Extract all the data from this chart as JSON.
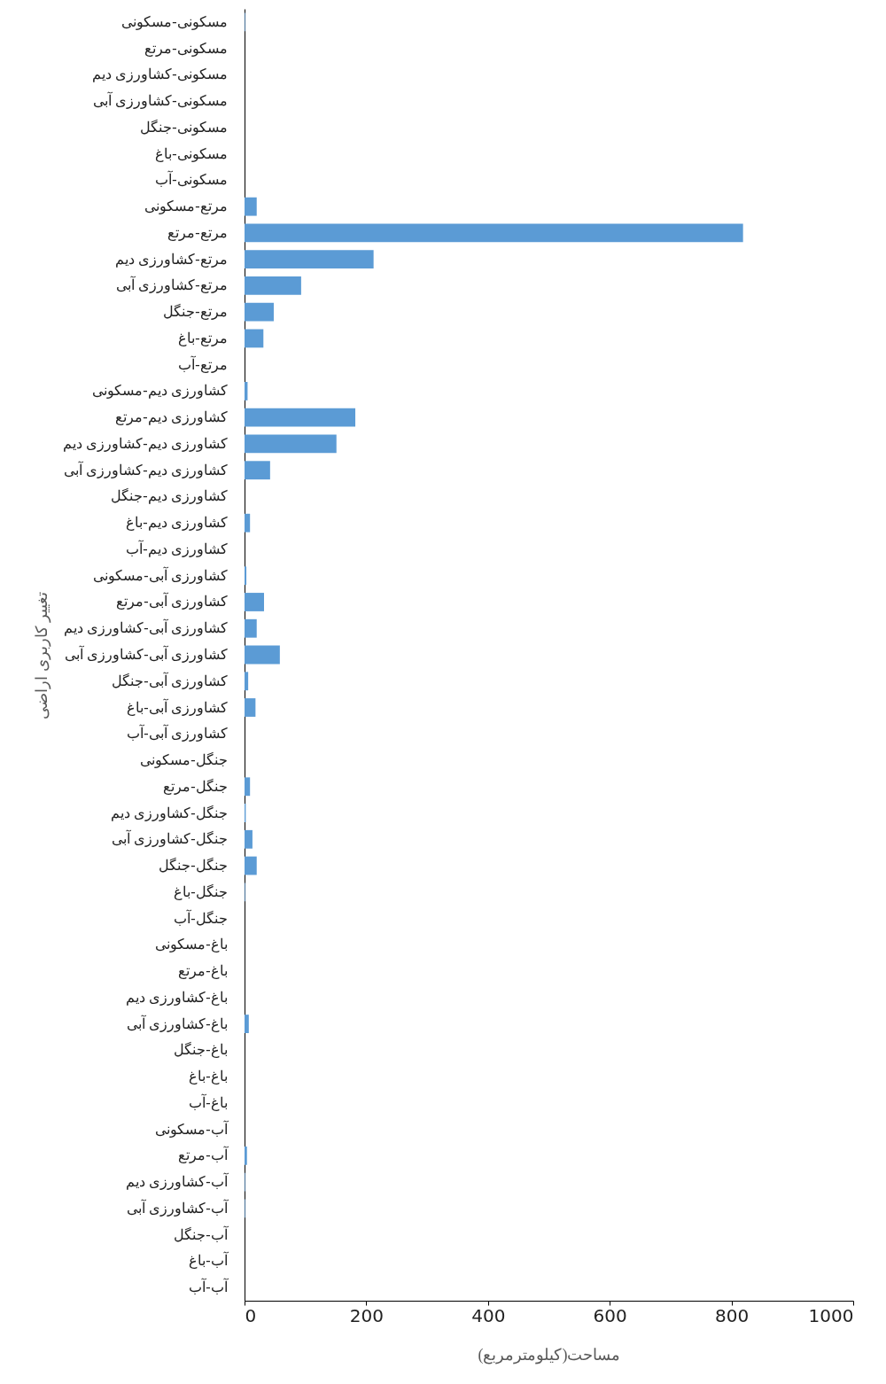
{
  "chart_data": {
    "type": "bar",
    "orientation": "horizontal",
    "xlabel": "مساحت(کیلومترمربع)",
    "ylabel": "تغییر کاربری اراضی",
    "categories": [
      "مسکونی-مسکونی",
      "مسکونی-مرتع",
      "مسکونی-کشاورزی دیم",
      "مسکونی-کشاورزی آبی",
      "مسکونی-جنگل",
      "مسکونی-باغ",
      "مسکونی-آب",
      "مرتع-مسکونی",
      "مرتع-مرتع",
      "مرتع-کشاورزی دیم",
      "مرتع-کشاورزی آبی",
      "مرتع-جنگل",
      "مرتع-باغ",
      "مرتع-آب",
      "کشاورزی دیم-مسکونی",
      "کشاورزی دیم-مرتع",
      "کشاورزی دیم-کشاورزی دیم",
      "کشاورزی دیم-کشاورزی آبی",
      "کشاورزی دیم-جنگل",
      "کشاورزی دیم-باغ",
      "کشاورزی دیم-آب",
      "کشاورزی آبی-مسکونی",
      "کشاورزی آبی-مرتع",
      "کشاورزی آبی-کشاورزی دیم",
      "کشاورزی آبی-کشاورزی آبی",
      "کشاورزی آبی-جنگل",
      "کشاورزی آبی-باغ",
      "کشاورزی آبی-آب",
      "جنگل-مسکونی",
      "جنگل-مرتع",
      "جنگل-کشاورزی دیم",
      "جنگل-کشاورزی آبی",
      "جنگل-جنگل",
      "جنگل-باغ",
      "جنگل-آب",
      "باغ-مسکونی",
      "باغ-مرتع",
      "باغ-کشاورزی دیم",
      "باغ-کشاورزی آبی",
      "باغ-جنگل",
      "باغ-باغ",
      "باغ-آب",
      "آب-مسکونی",
      "آب-مرتع",
      "آب-کشاورزی دیم",
      "آب-کشاورزی آبی",
      "آب-جنگل",
      "آب-باغ",
      "آب-آب"
    ],
    "values": [
      1,
      0,
      0,
      0,
      0,
      0,
      0,
      20,
      819,
      212,
      93,
      48,
      31,
      0,
      5,
      182,
      151,
      42,
      0,
      9,
      0,
      3,
      32,
      20,
      58,
      6,
      18,
      0,
      0,
      9,
      2,
      13,
      20,
      1,
      0,
      0,
      0,
      0,
      7,
      0,
      0,
      0,
      0,
      4,
      1,
      1,
      0,
      0,
      0
    ],
    "color": "#5b9bd5",
    "xlim": [
      0,
      1000
    ],
    "xticks": [
      0,
      200,
      400,
      600,
      800,
      1000
    ],
    "grid": false
  }
}
